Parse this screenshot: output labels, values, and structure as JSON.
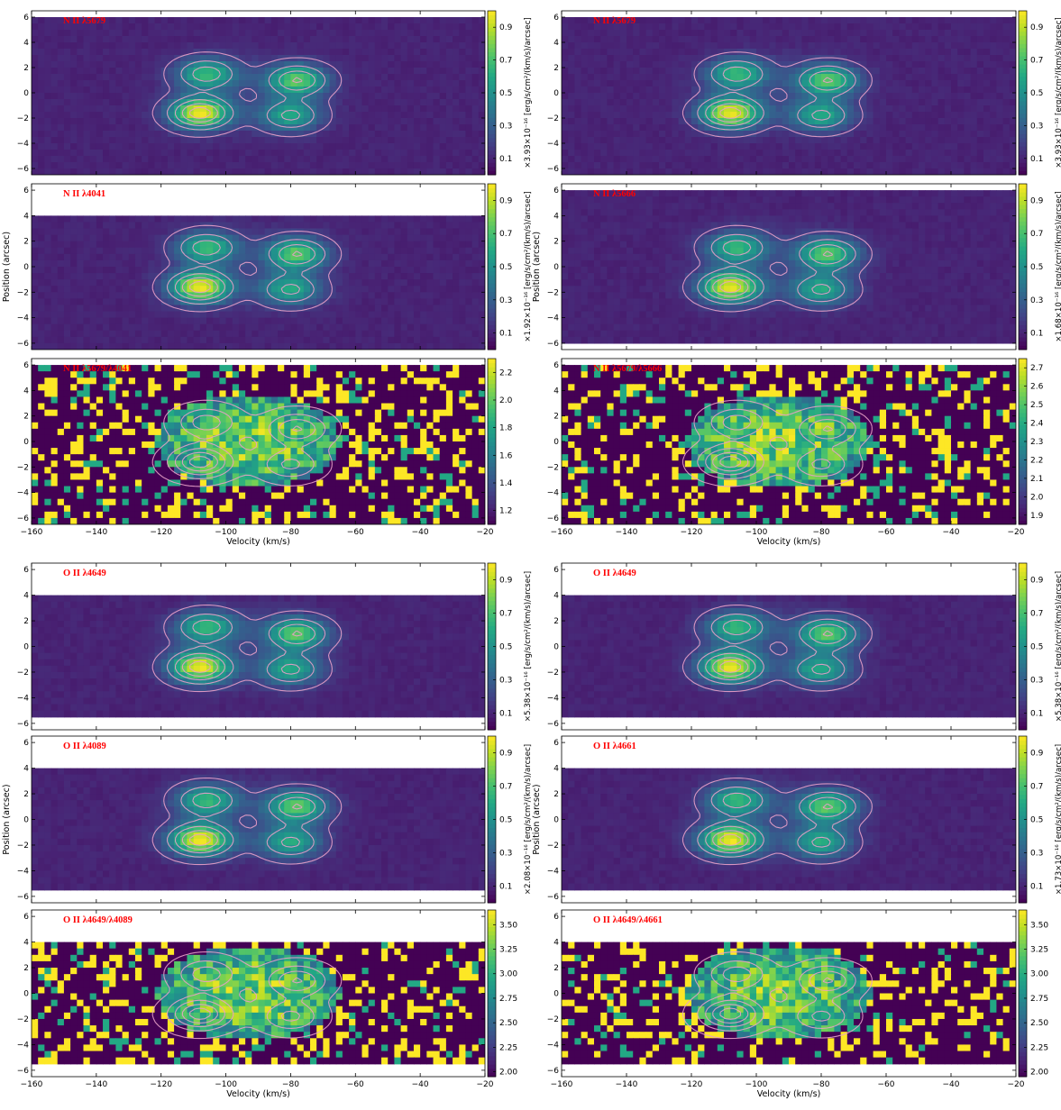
{
  "chart_data": {
    "type": "heatmap",
    "x_axis": {
      "label": "Velocity (km/s)",
      "range": [
        -160,
        -20
      ],
      "ticks": [
        -160,
        -140,
        -120,
        -100,
        -80,
        -60,
        -40,
        -20
      ]
    },
    "y_axis": {
      "label": "Position (arcsec)",
      "range": [
        -6.5,
        6.5
      ],
      "ticks": [
        -6,
        -4,
        -2,
        0,
        2,
        4,
        6
      ]
    },
    "colormap": "viridis",
    "contour_color": "#e8a0c8",
    "label_color": "#ff0000",
    "panels": [
      {
        "label": "N II λ5679",
        "kind": "emission",
        "valid_y": [
          -6.5,
          6.0
        ],
        "colorbar": {
          "label": "×3.93×10⁻¹⁶ [erg/s/cm²/(km/s)/arcsec]",
          "ticks": [
            "0.1",
            "0.3",
            "0.5",
            "0.7",
            "0.9"
          ],
          "range": [
            0,
            1
          ]
        }
      },
      {
        "label": "N II λ5679",
        "kind": "emission",
        "valid_y": [
          -6.5,
          6.0
        ],
        "colorbar": {
          "label": "×3.93×10⁻¹⁶ [erg/s/cm²/(km/s)/arcsec]",
          "ticks": [
            "0.1",
            "0.3",
            "0.5",
            "0.7",
            "0.9"
          ],
          "range": [
            0,
            1
          ]
        }
      },
      {
        "label": "N II λ4041",
        "kind": "emission",
        "valid_y": [
          -6.5,
          4.0
        ],
        "colorbar": {
          "label": "×1.92×10⁻¹⁶ [erg/s/cm²/(km/s)/arcsec]",
          "ticks": [
            "0.1",
            "0.3",
            "0.5",
            "0.7",
            "0.9"
          ],
          "range": [
            0,
            1
          ]
        }
      },
      {
        "label": "N II λ5666",
        "kind": "emission",
        "valid_y": [
          -6.0,
          6.0
        ],
        "colorbar": {
          "label": "×1.68×10⁻¹⁶ [erg/s/cm²/(km/s)/arcsec]",
          "ticks": [
            "0.1",
            "0.3",
            "0.5",
            "0.7",
            "0.9"
          ],
          "range": [
            0,
            1
          ]
        }
      },
      {
        "label": "N II λ5679/λ4041",
        "kind": "ratio",
        "valid_y": [
          -6.5,
          6.0
        ],
        "colorbar": {
          "label": "",
          "ticks": [
            "1.2",
            "1.4",
            "1.6",
            "1.8",
            "2.0",
            "2.2"
          ],
          "range": [
            1.1,
            2.3
          ]
        }
      },
      {
        "label": "N II λ5679/λ5666",
        "kind": "ratio",
        "valid_y": [
          -6.5,
          6.0
        ],
        "colorbar": {
          "label": "",
          "ticks": [
            "1.9",
            "2.0",
            "2.1",
            "2.2",
            "2.3",
            "2.4",
            "2.5",
            "2.6",
            "2.7"
          ],
          "range": [
            1.85,
            2.75
          ]
        }
      },
      {
        "label": "O II λ4649",
        "kind": "emission",
        "valid_y": [
          -5.5,
          4.0
        ],
        "colorbar": {
          "label": "×5.38×10⁻¹⁶ [erg/s/cm²/(km/s)/arcsec]",
          "ticks": [
            "0.1",
            "0.3",
            "0.5",
            "0.7",
            "0.9"
          ],
          "range": [
            0,
            1
          ]
        }
      },
      {
        "label": "O II λ4649",
        "kind": "emission",
        "valid_y": [
          -5.5,
          4.0
        ],
        "colorbar": {
          "label": "×5.38×10⁻¹⁶ [erg/s/cm²/(km/s)/arcsec]",
          "ticks": [
            "0.1",
            "0.3",
            "0.5",
            "0.7",
            "0.9"
          ],
          "range": [
            0,
            1
          ]
        }
      },
      {
        "label": "O II λ4089",
        "kind": "emission",
        "valid_y": [
          -5.5,
          4.0
        ],
        "colorbar": {
          "label": "×2.08×10⁻¹⁶ [erg/s/cm²/(km/s)/arcsec]",
          "ticks": [
            "0.1",
            "0.3",
            "0.5",
            "0.7",
            "0.9"
          ],
          "range": [
            0,
            1
          ]
        }
      },
      {
        "label": "O II λ4661",
        "kind": "emission",
        "valid_y": [
          -5.5,
          4.0
        ],
        "colorbar": {
          "label": "×1.73×10⁻¹⁶ [erg/s/cm²/(km/s)/arcsec]",
          "ticks": [
            "0.1",
            "0.3",
            "0.5",
            "0.7",
            "0.9"
          ],
          "range": [
            0,
            1
          ]
        }
      },
      {
        "label": "O II λ4649/λ4089",
        "kind": "ratio",
        "valid_y": [
          -5.5,
          4.0
        ],
        "colorbar": {
          "label": "",
          "ticks": [
            "2.00",
            "2.25",
            "2.50",
            "2.75",
            "3.00",
            "3.25",
            "3.50"
          ],
          "range": [
            1.95,
            3.65
          ]
        }
      },
      {
        "label": "O II λ4649/λ4661",
        "kind": "ratio",
        "valid_y": [
          -5.5,
          4.0
        ],
        "colorbar": {
          "label": "",
          "ticks": [
            "2.00",
            "2.25",
            "2.50",
            "2.75",
            "3.00",
            "3.25",
            "3.50"
          ],
          "range": [
            1.95,
            3.65
          ]
        }
      }
    ],
    "emission_peaks": [
      {
        "v": -108,
        "p": -1.6,
        "amp": 1.0
      },
      {
        "v": -106,
        "p": 1.5,
        "amp": 0.62
      },
      {
        "v": -78,
        "p": 1.0,
        "amp": 0.72
      },
      {
        "v": -80,
        "p": -1.8,
        "amp": 0.55
      }
    ]
  }
}
